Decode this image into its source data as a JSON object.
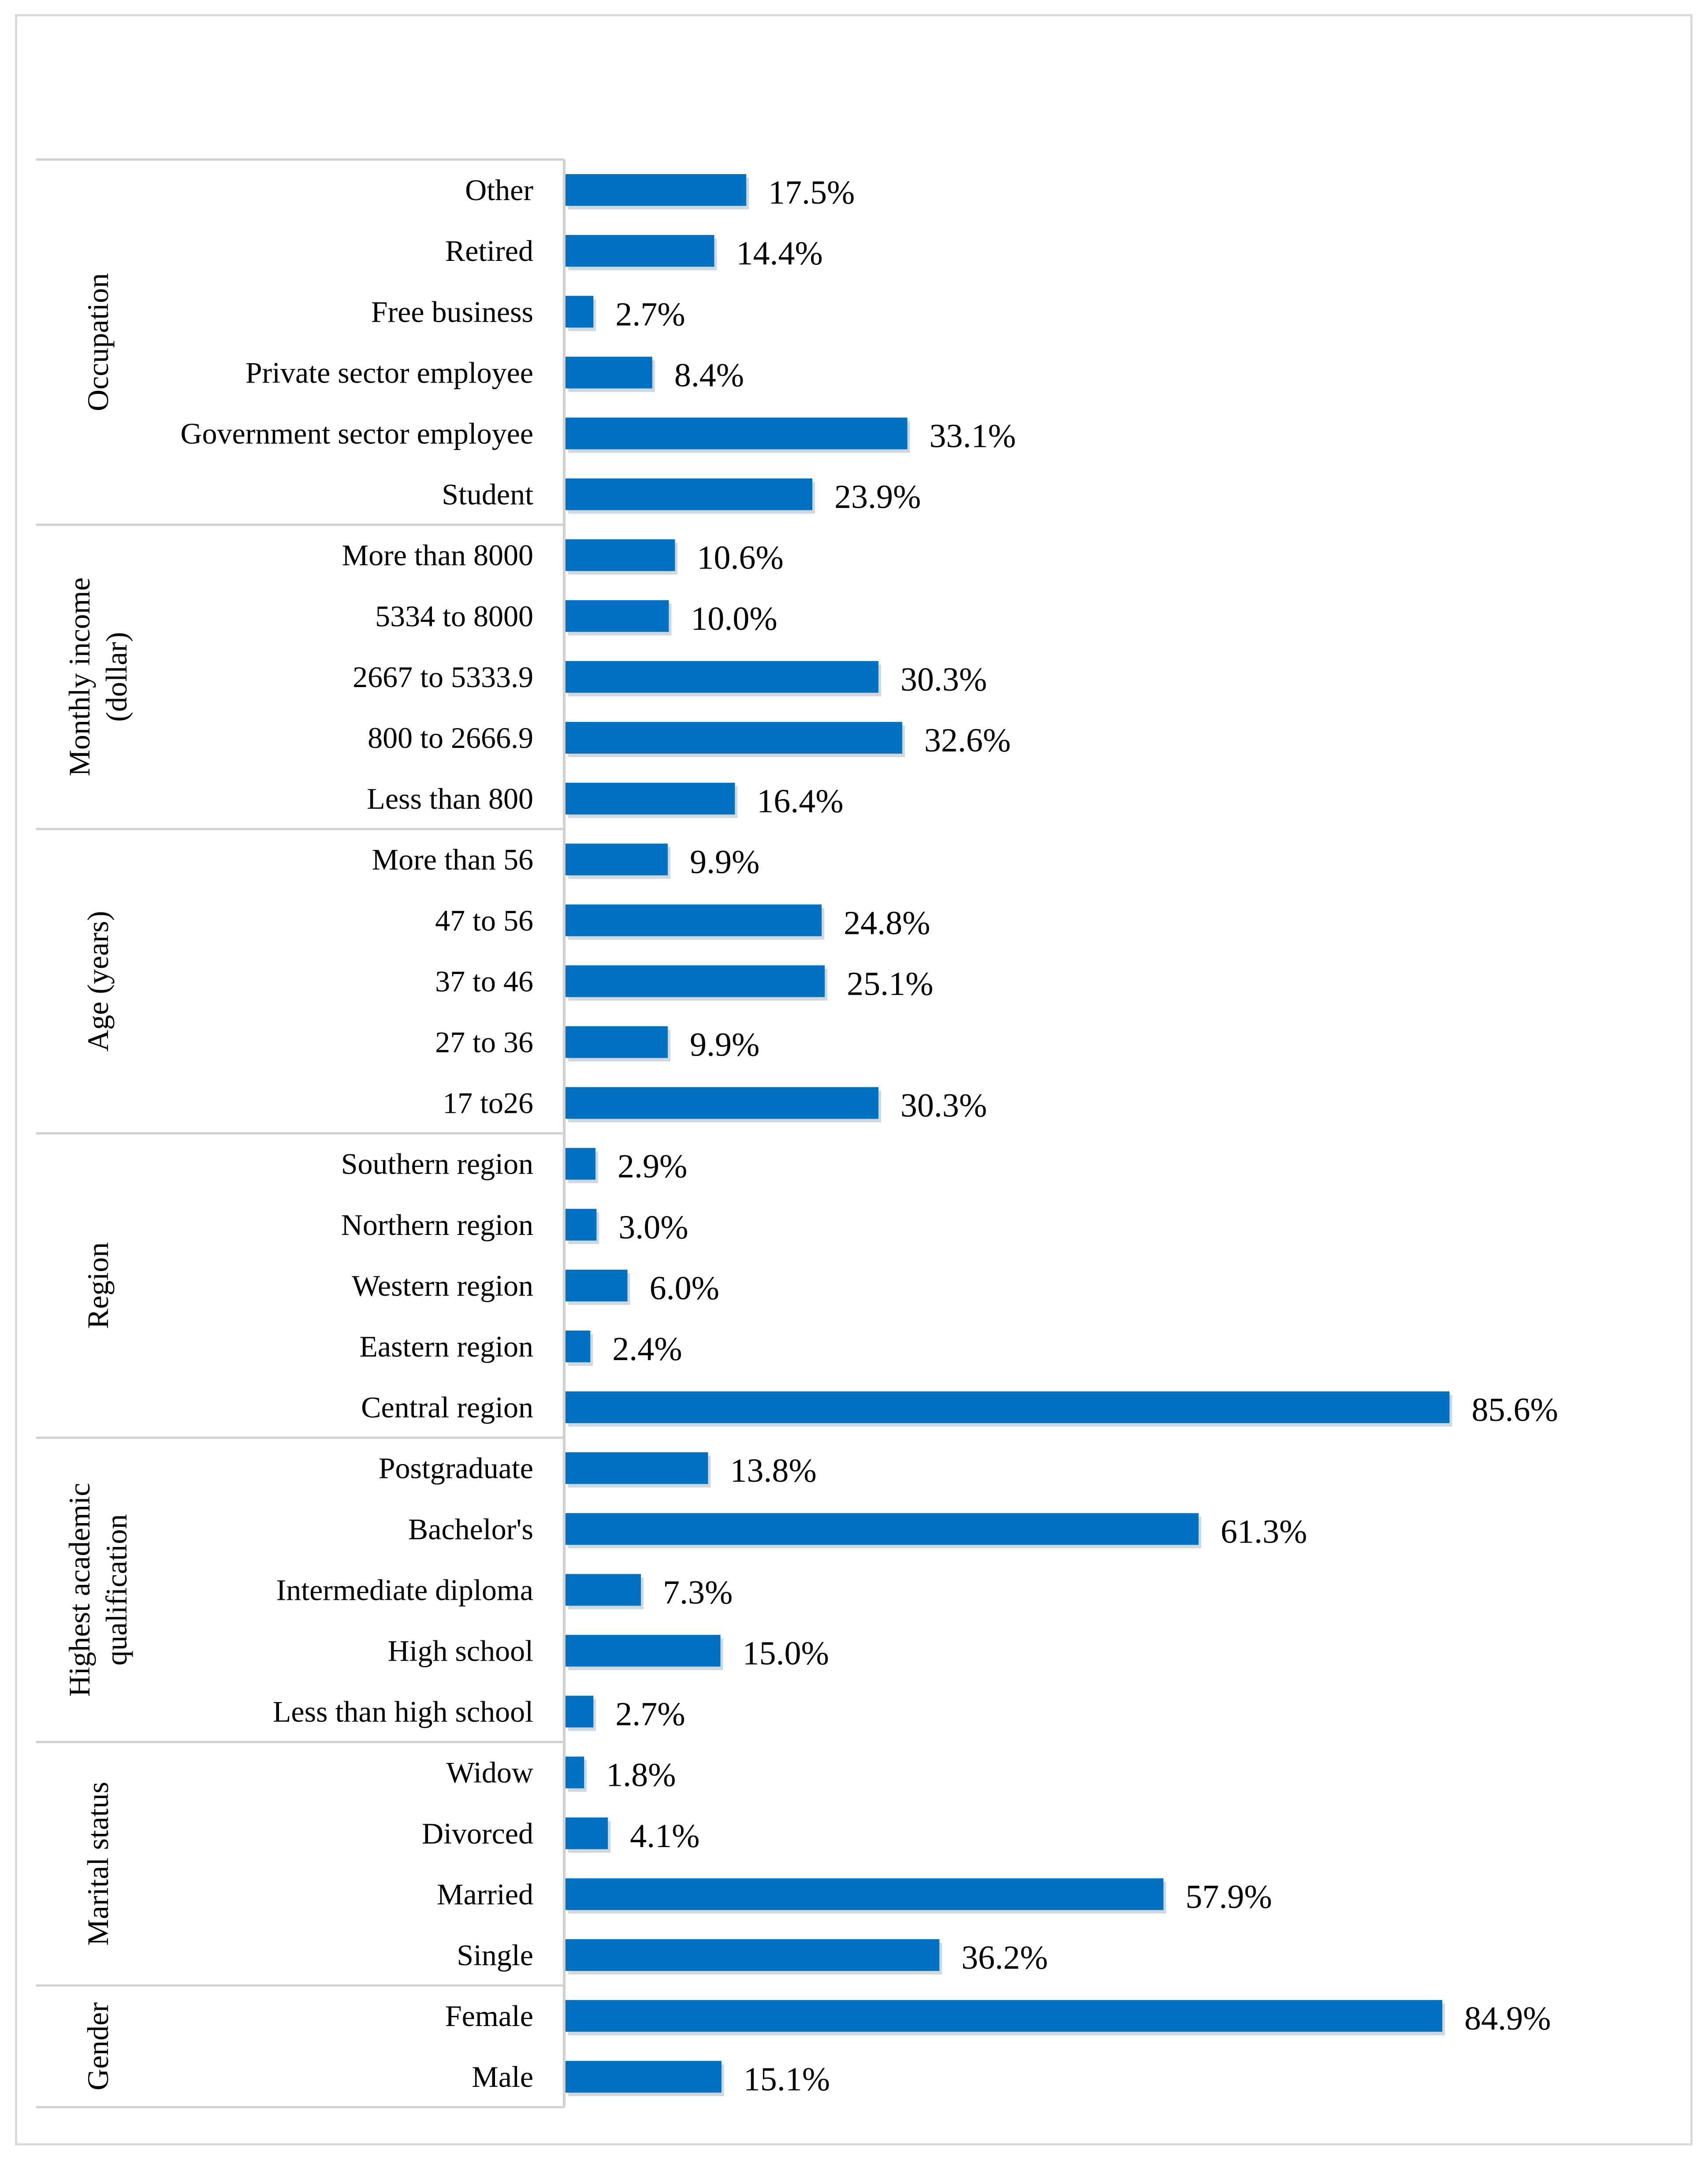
{
  "chart_data": {
    "type": "bar",
    "orientation": "horizontal",
    "title": "",
    "xlabel": "",
    "ylabel": "",
    "xlim": [
      0,
      100
    ],
    "value_suffix": "%",
    "bar_color": "#0070c0",
    "grid": false,
    "legend": "none",
    "groups": [
      {
        "name": "Occupation",
        "lines": [
          "Occupation"
        ],
        "categories": [
          "Other",
          "Retired",
          "Free business",
          "Private sector employee",
          "Government sector employee",
          "Student"
        ],
        "values": [
          17.5,
          14.4,
          2.7,
          8.4,
          33.1,
          23.9
        ]
      },
      {
        "name": "Monthly income (dollar)",
        "lines": [
          "Monthly income",
          "(dollar)"
        ],
        "categories": [
          "More than 8000",
          "5334 to 8000",
          "2667 to 5333.9",
          "800 to 2666.9",
          "Less than 800"
        ],
        "values": [
          10.6,
          10.0,
          30.3,
          32.6,
          16.4
        ]
      },
      {
        "name": "Age (years)",
        "lines": [
          "Age (years)"
        ],
        "categories": [
          "More than 56",
          "47 to 56",
          "37 to 46",
          "27 to 36",
          "17 to26"
        ],
        "values": [
          9.9,
          24.8,
          25.1,
          9.9,
          30.3
        ]
      },
      {
        "name": "Region",
        "lines": [
          "Region"
        ],
        "categories": [
          "Southern region",
          "Northern region",
          "Western region",
          "Eastern region",
          "Central region"
        ],
        "values": [
          2.9,
          3.0,
          6.0,
          2.4,
          85.6
        ]
      },
      {
        "name": "Highest academic qualification",
        "lines": [
          "Highest academic",
          "qualification"
        ],
        "categories": [
          "Postgraduate",
          "Bachelor's",
          "Intermediate diploma",
          "High school",
          "Less than high school"
        ],
        "values": [
          13.8,
          61.3,
          7.3,
          15.0,
          2.7
        ]
      },
      {
        "name": "Marital status",
        "lines": [
          "Marital status"
        ],
        "categories": [
          "Widow",
          "Divorced",
          "Married",
          "Single"
        ],
        "values": [
          1.8,
          4.1,
          57.9,
          36.2
        ]
      },
      {
        "name": "Gender",
        "lines": [
          "Gender"
        ],
        "categories": [
          "Female",
          "Male"
        ],
        "values": [
          84.9,
          15.1
        ]
      }
    ]
  }
}
